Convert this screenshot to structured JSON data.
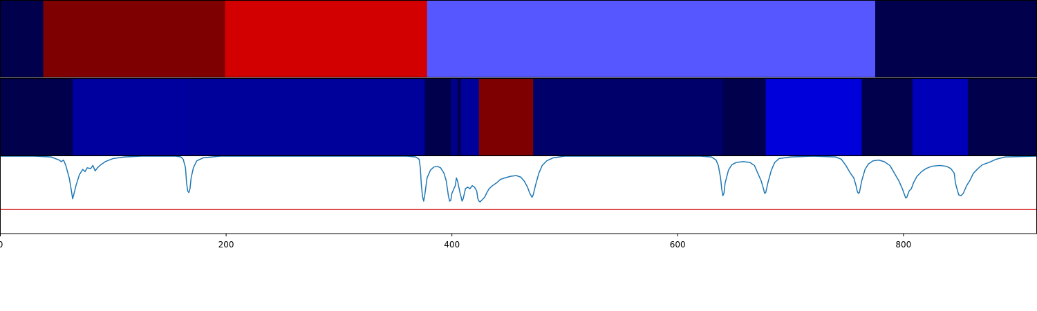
{
  "chart_data": {
    "type": "heatmap",
    "x_range": [
      0,
      918
    ],
    "x_ticks": [
      {
        "value": 0,
        "label": "0"
      },
      {
        "value": 200,
        "label": "200"
      },
      {
        "value": 400,
        "label": "400"
      },
      {
        "value": 600,
        "label": "600"
      },
      {
        "value": 800,
        "label": "800"
      }
    ],
    "tracks": [
      {
        "segments": [
          {
            "start": 0,
            "end": 38,
            "color": "#00004c"
          },
          {
            "start": 38,
            "end": 199,
            "color": "#7f0000"
          },
          {
            "start": 199,
            "end": 378,
            "color": "#d20000"
          },
          {
            "start": 378,
            "end": 775,
            "color": "#5757ff"
          },
          {
            "start": 775,
            "end": 918,
            "color": "#00004c"
          }
        ]
      },
      {
        "segments": [
          {
            "start": 0,
            "end": 64,
            "color": "#00004c"
          },
          {
            "start": 64,
            "end": 167,
            "color": "#00009f"
          },
          {
            "start": 167,
            "end": 376,
            "color": "#00009a"
          },
          {
            "start": 376,
            "end": 399,
            "color": "#00004c"
          },
          {
            "start": 399,
            "end": 405,
            "color": "#00008a"
          },
          {
            "start": 405,
            "end": 408,
            "color": "#00004c"
          },
          {
            "start": 408,
            "end": 424,
            "color": "#00009a"
          },
          {
            "start": 424,
            "end": 472,
            "color": "#7f0000"
          },
          {
            "start": 472,
            "end": 640,
            "color": "#00006a"
          },
          {
            "start": 640,
            "end": 678,
            "color": "#00004c"
          },
          {
            "start": 678,
            "end": 763,
            "color": "#0000da"
          },
          {
            "start": 763,
            "end": 808,
            "color": "#00004c"
          },
          {
            "start": 808,
            "end": 857,
            "color": "#0000b8"
          },
          {
            "start": 857,
            "end": 918,
            "color": "#00004c"
          }
        ]
      }
    ],
    "series": [
      {
        "type": "line",
        "color": "#1f77b4",
        "ylim": [
          0,
          1
        ],
        "points": [
          [
            0,
            1.0
          ],
          [
            30,
            1.0
          ],
          [
            45,
            0.99
          ],
          [
            52,
            0.95
          ],
          [
            54,
            0.93
          ],
          [
            56,
            0.95
          ],
          [
            58,
            0.88
          ],
          [
            61,
            0.72
          ],
          [
            63,
            0.55
          ],
          [
            64,
            0.45
          ],
          [
            65,
            0.5
          ],
          [
            67,
            0.62
          ],
          [
            70,
            0.76
          ],
          [
            73,
            0.83
          ],
          [
            75,
            0.8
          ],
          [
            77,
            0.85
          ],
          [
            80,
            0.84
          ],
          [
            82,
            0.88
          ],
          [
            84,
            0.81
          ],
          [
            86,
            0.85
          ],
          [
            89,
            0.89
          ],
          [
            93,
            0.93
          ],
          [
            100,
            0.97
          ],
          [
            110,
            0.99
          ],
          [
            125,
            1.0
          ],
          [
            155,
            1.0
          ],
          [
            160,
            0.99
          ],
          [
            162,
            0.96
          ],
          [
            164,
            0.85
          ],
          [
            165,
            0.65
          ],
          [
            166,
            0.55
          ],
          [
            167,
            0.53
          ],
          [
            168,
            0.58
          ],
          [
            169,
            0.72
          ],
          [
            171,
            0.85
          ],
          [
            174,
            0.94
          ],
          [
            180,
            0.98
          ],
          [
            195,
            1.0
          ],
          [
            360,
            1.0
          ],
          [
            368,
            0.99
          ],
          [
            371,
            0.96
          ],
          [
            372,
            0.85
          ],
          [
            373,
            0.62
          ],
          [
            374,
            0.48
          ],
          [
            375,
            0.42
          ],
          [
            376,
            0.5
          ],
          [
            378,
            0.72
          ],
          [
            381,
            0.82
          ],
          [
            384,
            0.86
          ],
          [
            387,
            0.87
          ],
          [
            390,
            0.85
          ],
          [
            393,
            0.78
          ],
          [
            395,
            0.68
          ],
          [
            397,
            0.48
          ],
          [
            398,
            0.42
          ],
          [
            399,
            0.43
          ],
          [
            400,
            0.52
          ],
          [
            403,
            0.62
          ],
          [
            404,
            0.72
          ],
          [
            405,
            0.68
          ],
          [
            407,
            0.54
          ],
          [
            409,
            0.42
          ],
          [
            410,
            0.45
          ],
          [
            412,
            0.58
          ],
          [
            414,
            0.6
          ],
          [
            416,
            0.58
          ],
          [
            418,
            0.62
          ],
          [
            420,
            0.6
          ],
          [
            422,
            0.55
          ],
          [
            423,
            0.45
          ],
          [
            424,
            0.42
          ],
          [
            425,
            0.41
          ],
          [
            427,
            0.44
          ],
          [
            429,
            0.47
          ],
          [
            431,
            0.53
          ],
          [
            433,
            0.58
          ],
          [
            436,
            0.62
          ],
          [
            438,
            0.64
          ],
          [
            440,
            0.66
          ],
          [
            443,
            0.7
          ],
          [
            447,
            0.72
          ],
          [
            452,
            0.74
          ],
          [
            457,
            0.75
          ],
          [
            461,
            0.73
          ],
          [
            464,
            0.68
          ],
          [
            467,
            0.6
          ],
          [
            469,
            0.52
          ],
          [
            471,
            0.47
          ],
          [
            472,
            0.5
          ],
          [
            474,
            0.62
          ],
          [
            477,
            0.78
          ],
          [
            480,
            0.88
          ],
          [
            484,
            0.94
          ],
          [
            490,
            0.98
          ],
          [
            500,
            1.0
          ],
          [
            620,
            1.0
          ],
          [
            630,
            0.99
          ],
          [
            634,
            0.95
          ],
          [
            636,
            0.88
          ],
          [
            638,
            0.72
          ],
          [
            639,
            0.58
          ],
          [
            640,
            0.49
          ],
          [
            641,
            0.52
          ],
          [
            642,
            0.65
          ],
          [
            645,
            0.82
          ],
          [
            648,
            0.89
          ],
          [
            652,
            0.92
          ],
          [
            658,
            0.93
          ],
          [
            664,
            0.92
          ],
          [
            668,
            0.88
          ],
          [
            671,
            0.78
          ],
          [
            674,
            0.68
          ],
          [
            676,
            0.58
          ],
          [
            677,
            0.52
          ],
          [
            678,
            0.53
          ],
          [
            680,
            0.66
          ],
          [
            683,
            0.82
          ],
          [
            686,
            0.92
          ],
          [
            690,
            0.97
          ],
          [
            700,
            0.99
          ],
          [
            720,
            1.0
          ],
          [
            740,
            0.99
          ],
          [
            745,
            0.96
          ],
          [
            749,
            0.88
          ],
          [
            753,
            0.78
          ],
          [
            756,
            0.72
          ],
          [
            758,
            0.62
          ],
          [
            759,
            0.55
          ],
          [
            760,
            0.52
          ],
          [
            761,
            0.53
          ],
          [
            763,
            0.68
          ],
          [
            766,
            0.83
          ],
          [
            769,
            0.9
          ],
          [
            773,
            0.94
          ],
          [
            778,
            0.95
          ],
          [
            783,
            0.93
          ],
          [
            788,
            0.88
          ],
          [
            792,
            0.78
          ],
          [
            796,
            0.68
          ],
          [
            799,
            0.58
          ],
          [
            801,
            0.5
          ],
          [
            802,
            0.46
          ],
          [
            803,
            0.47
          ],
          [
            805,
            0.55
          ],
          [
            807,
            0.58
          ],
          [
            809,
            0.66
          ],
          [
            812,
            0.74
          ],
          [
            816,
            0.8
          ],
          [
            820,
            0.84
          ],
          [
            825,
            0.87
          ],
          [
            832,
            0.88
          ],
          [
            838,
            0.87
          ],
          [
            842,
            0.84
          ],
          [
            845,
            0.78
          ],
          [
            846,
            0.66
          ],
          [
            847,
            0.6
          ],
          [
            849,
            0.5
          ],
          [
            851,
            0.49
          ],
          [
            853,
            0.52
          ],
          [
            856,
            0.62
          ],
          [
            859,
            0.69
          ],
          [
            862,
            0.78
          ],
          [
            866,
            0.84
          ],
          [
            870,
            0.89
          ],
          [
            876,
            0.92
          ],
          [
            882,
            0.96
          ],
          [
            890,
            0.99
          ],
          [
            918,
            1.0
          ]
        ]
      }
    ],
    "hlines": [
      {
        "y": 0.31,
        "color": "#d62728"
      }
    ]
  }
}
